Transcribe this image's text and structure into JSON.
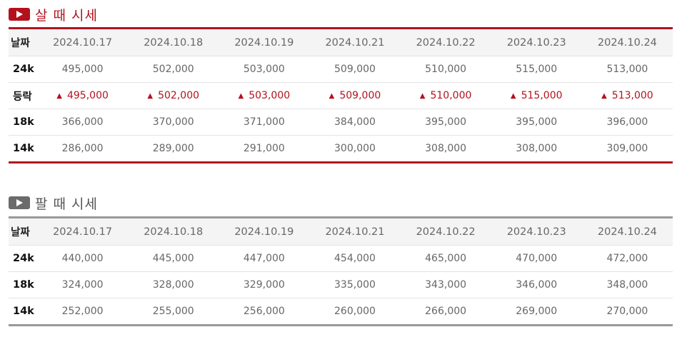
{
  "buy": {
    "title": "살 때 시세",
    "icon": "play-icon",
    "accent": "#b3121d",
    "header_label": "날짜",
    "dates": [
      "2024.10.17",
      "2024.10.18",
      "2024.10.19",
      "2024.10.21",
      "2024.10.22",
      "2024.10.23",
      "2024.10.24"
    ],
    "rows": [
      {
        "label": "24k",
        "values": [
          "495,000",
          "502,000",
          "503,000",
          "509,000",
          "510,000",
          "515,000",
          "513,000"
        ]
      },
      {
        "label": "등락",
        "trend_icon": "triangle-up-icon",
        "values": [
          "495,000",
          "502,000",
          "503,000",
          "509,000",
          "510,000",
          "515,000",
          "513,000"
        ]
      },
      {
        "label": "18k",
        "values": [
          "366,000",
          "370,000",
          "371,000",
          "384,000",
          "395,000",
          "395,000",
          "396,000"
        ]
      },
      {
        "label": "14k",
        "values": [
          "286,000",
          "289,000",
          "291,000",
          "300,000",
          "308,000",
          "308,000",
          "309,000"
        ]
      }
    ]
  },
  "sell": {
    "title": "팔 때 시세",
    "icon": "play-icon",
    "accent": "#999999",
    "header_label": "날짜",
    "dates": [
      "2024.10.17",
      "2024.10.18",
      "2024.10.19",
      "2024.10.21",
      "2024.10.22",
      "2024.10.23",
      "2024.10.24"
    ],
    "rows": [
      {
        "label": "24k",
        "values": [
          "440,000",
          "445,000",
          "447,000",
          "454,000",
          "465,000",
          "470,000",
          "472,000"
        ]
      },
      {
        "label": "18k",
        "values": [
          "324,000",
          "328,000",
          "329,000",
          "335,000",
          "343,000",
          "346,000",
          "348,000"
        ]
      },
      {
        "label": "14k",
        "values": [
          "252,000",
          "255,000",
          "256,000",
          "260,000",
          "266,000",
          "269,000",
          "270,000"
        ]
      }
    ]
  }
}
